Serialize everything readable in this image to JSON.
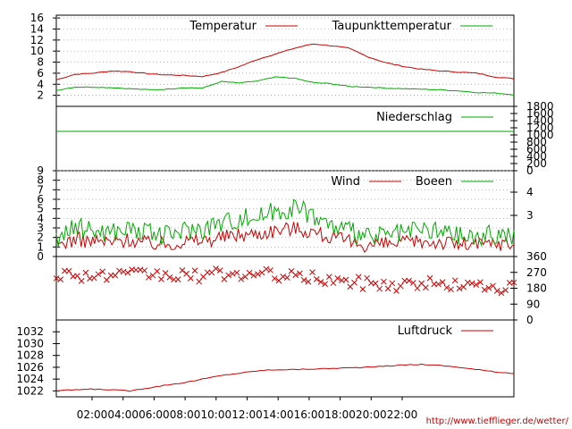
{
  "chart_data": [
    {
      "type": "line",
      "panel": "temperature",
      "ylim": [
        0,
        16.5
      ],
      "yticks": [
        "16",
        "14",
        "12",
        "10",
        "8",
        "6",
        "4",
        "2"
      ],
      "series": [
        {
          "name": "Temperatur",
          "color": "#cc0000",
          "values": [
            4.8,
            5.8,
            6.0,
            6.4,
            6.3,
            5.9,
            5.7,
            5.6,
            5.4,
            6.1,
            7.2,
            8.5,
            9.5,
            10.5,
            11.3,
            11.0,
            10.5,
            9.0,
            7.9,
            7.2,
            6.7,
            6.4,
            6.2,
            6.0,
            5.3,
            5.0
          ]
        },
        {
          "name": "Taupunkttemperatur",
          "color": "#00aa00",
          "values": [
            2.9,
            3.5,
            3.5,
            3.4,
            3.2,
            3.0,
            3.1,
            3.4,
            3.3,
            4.5,
            4.2,
            4.6,
            5.3,
            5.1,
            4.3,
            4.1,
            3.6,
            3.5,
            3.3,
            3.2,
            3.1,
            3.0,
            2.8,
            2.5,
            2.4,
            2.1
          ]
        }
      ],
      "grid": true,
      "legend": "top-right"
    },
    {
      "type": "line",
      "panel": "precipitation",
      "ylim": [
        0,
        1800
      ],
      "yticks_right": [
        "1800",
        "1600",
        "1400",
        "1200",
        "1000",
        "800",
        "600",
        "400",
        "200",
        "0"
      ],
      "series": [
        {
          "name": "Niederschlag",
          "color": "#00aa00",
          "constant": 1100
        }
      ],
      "legend": "top-right"
    },
    {
      "type": "line",
      "panel": "wind",
      "ylim": [
        0,
        9
      ],
      "yticks": [
        "9",
        "8",
        "7",
        "6",
        "5",
        "4",
        "3",
        "2",
        "1",
        "0"
      ],
      "yticks_right": [
        "4",
        "3"
      ],
      "series": [
        {
          "name": "Wind",
          "color": "#cc0000",
          "values": [
            1.2,
            1.8,
            1.6,
            1.5,
            1.8,
            1.4,
            1.3,
            1.6,
            1.7,
            2.0,
            2.3,
            2.4,
            2.8,
            3.0,
            2.6,
            2.0,
            1.5,
            1.2,
            1.3,
            1.4,
            1.6,
            1.5,
            1.3,
            1.2,
            1.4,
            1.3
          ]
        },
        {
          "name": "Boeen",
          "color": "#00aa00",
          "values": [
            2.0,
            3.0,
            2.8,
            2.6,
            3.0,
            2.4,
            2.2,
            2.8,
            3.0,
            3.6,
            4.0,
            4.2,
            4.8,
            5.2,
            4.4,
            3.2,
            2.6,
            2.0,
            2.2,
            2.4,
            2.8,
            2.6,
            2.2,
            2.0,
            2.4,
            2.2
          ]
        }
      ],
      "grid": true,
      "legend": "top-right"
    },
    {
      "type": "scatter",
      "panel": "wind-direction",
      "ylim": [
        0,
        360
      ],
      "yticks_right": [
        "360",
        "270",
        "180",
        "90",
        "0"
      ],
      "marker": "x",
      "color": "#cc0000",
      "values": [
        260,
        260,
        250,
        250,
        250,
        260,
        250,
        250,
        250,
        260,
        260,
        250,
        260,
        240,
        240,
        230,
        210,
        210,
        200,
        200,
        210,
        200,
        200,
        190,
        190,
        180
      ]
    },
    {
      "type": "line",
      "panel": "pressure",
      "ylim": [
        1021,
        1034
      ],
      "yticks": [
        "1032",
        "1030",
        "1028",
        "1026",
        "1024",
        "1022"
      ],
      "series": [
        {
          "name": "Luftdruck",
          "color": "#cc0000",
          "values": [
            1022.0,
            1022.2,
            1022.3,
            1022.2,
            1022.0,
            1022.5,
            1023.0,
            1023.4,
            1024.0,
            1024.6,
            1025.0,
            1025.4,
            1025.6,
            1025.6,
            1025.7,
            1025.8,
            1025.9,
            1026.0,
            1026.2,
            1026.4,
            1026.5,
            1026.3,
            1026.0,
            1025.6,
            1025.2,
            1025.0
          ]
        }
      ],
      "legend": "top-right"
    }
  ],
  "x_axis": {
    "ticks": [
      "02:00",
      "04:00",
      "06:00",
      "08:00",
      "10:00",
      "12:00",
      "14:00",
      "16:00",
      "18:00",
      "20:00",
      "22:00"
    ]
  },
  "footer_url": "http://www.tiefflieger.de/wetter/"
}
